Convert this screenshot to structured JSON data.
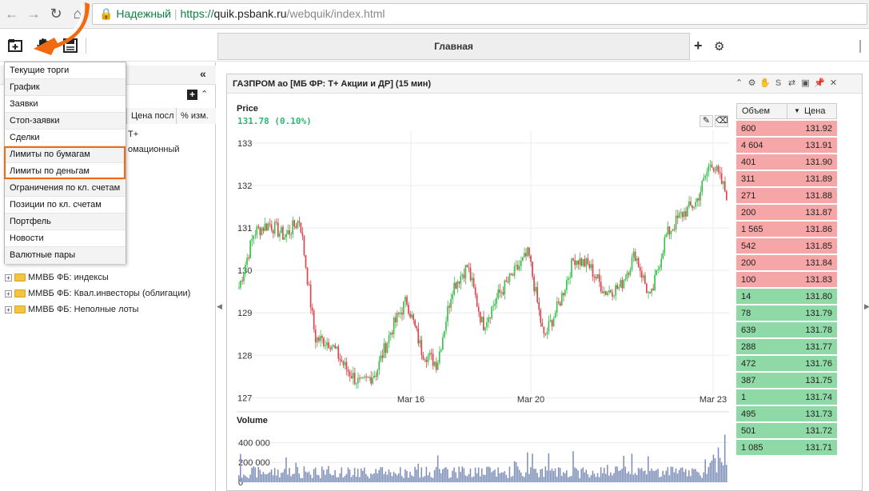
{
  "browser": {
    "secure_label": "Надежный",
    "url_scheme": "https://",
    "url_host": "quik.psbank.ru",
    "url_path": "/webquik/index.html"
  },
  "toolbar": {
    "home_tab": "Главная"
  },
  "left_panel": {
    "columns": [
      "Цена посл",
      "% изм."
    ],
    "partial_rows": [
      "T+",
      "омационный"
    ],
    "tree": [
      "ММВБ ФБ: индексы",
      "ММВБ ФБ: Квал.инвесторы (облигации)",
      "ММВБ ФБ: Неполные лоты"
    ]
  },
  "menu": {
    "items": [
      "Текущие торги",
      "График",
      "Заявки",
      "Стоп-заявки",
      "Сделки",
      "Лимиты по бумагам",
      "Лимиты по деньгам",
      "Ограничения по кл. счетам",
      "Позиции по кл. счетам",
      "Портфель",
      "Новости",
      "Валютные пары"
    ]
  },
  "chart_window": {
    "title": "ГАЗПРОМ ао [МБ ФР: Т+ Акции и ДР] (15 мин)",
    "price_label": "Price",
    "price_value": "131.78 (0.10%)",
    "volume_label": "Volume"
  },
  "orderbook": {
    "col_volume": "Объем",
    "col_price": "Цена",
    "asks": [
      {
        "v": "600",
        "p": "131.92"
      },
      {
        "v": "4 604",
        "p": "131.91"
      },
      {
        "v": "401",
        "p": "131.90"
      },
      {
        "v": "311",
        "p": "131.89"
      },
      {
        "v": "271",
        "p": "131.88"
      },
      {
        "v": "200",
        "p": "131.87"
      },
      {
        "v": "1 565",
        "p": "131.86"
      },
      {
        "v": "542",
        "p": "131.85"
      },
      {
        "v": "200",
        "p": "131.84"
      },
      {
        "v": "100",
        "p": "131.83"
      }
    ],
    "bids": [
      {
        "v": "14",
        "p": "131.80"
      },
      {
        "v": "78",
        "p": "131.79"
      },
      {
        "v": "639",
        "p": "131.78"
      },
      {
        "v": "288",
        "p": "131.77"
      },
      {
        "v": "472",
        "p": "131.76"
      },
      {
        "v": "387",
        "p": "131.75"
      },
      {
        "v": "1",
        "p": "131.74"
      },
      {
        "v": "495",
        "p": "131.73"
      },
      {
        "v": "501",
        "p": "131.72"
      },
      {
        "v": "1 085",
        "p": "131.71"
      }
    ],
    "ask_color": "#f6a6a6",
    "bid_color": "#8ed9a6"
  },
  "chart_data": {
    "type": "candlestick",
    "y_ticks": [
      "133",
      "132",
      "131",
      "130",
      "129",
      "128",
      "127"
    ],
    "ylim": [
      126.8,
      133.3
    ],
    "x_labels": [
      "Mar 16",
      "Mar 20",
      "Mar 23"
    ],
    "volume_ticks": [
      "400 000",
      "200 000",
      "0"
    ],
    "volume_ylim": [
      0,
      500000
    ],
    "close_path": [
      129.6,
      130.9,
      131.1,
      130.8,
      131.2,
      128.4,
      128.3,
      127.7,
      127.3,
      127.6,
      128.6,
      129.3,
      128.1,
      127.8,
      129.6,
      130.1,
      128.7,
      129.4,
      129.9,
      130.4,
      128.4,
      129.2,
      130.3,
      130.1,
      129.5,
      129.6,
      130.4,
      129.3,
      130.8,
      131.3,
      131.6,
      132.6,
      131.8
    ],
    "up_color": "#36c24a",
    "down_color": "#d9434b",
    "volume_color": "#7e8fb8"
  }
}
